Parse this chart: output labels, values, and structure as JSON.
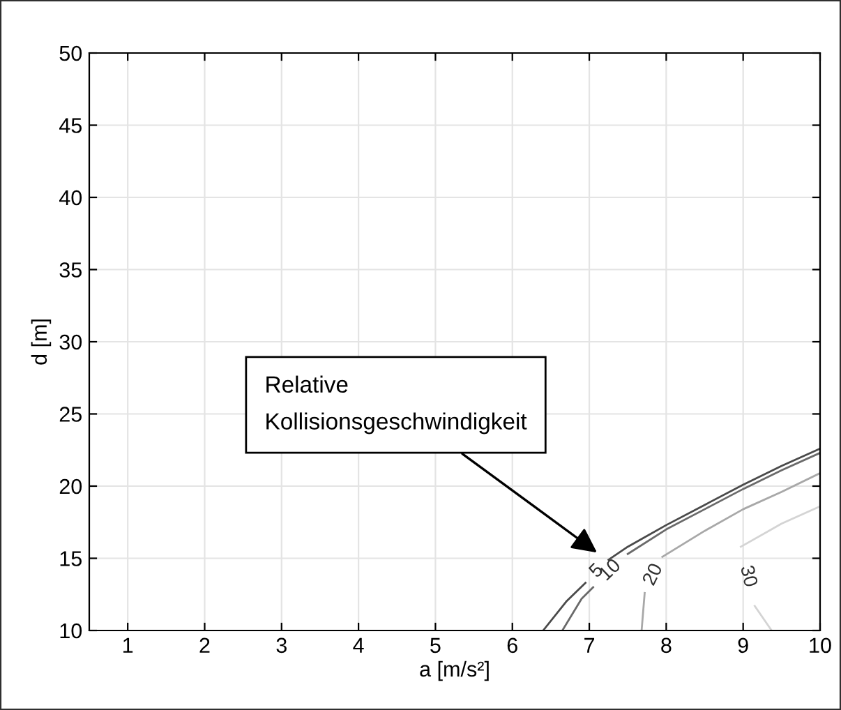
{
  "chart_data": {
    "type": "line",
    "xlabel": "a [m/s²]",
    "ylabel": "d [m]",
    "xlim": [
      0.5,
      10
    ],
    "xticks": [
      1,
      2,
      3,
      4,
      5,
      6,
      7,
      8,
      9,
      10
    ],
    "ylim": [
      10,
      50
    ],
    "yticks": [
      10,
      15,
      20,
      25,
      30,
      35,
      40,
      45,
      50
    ],
    "grid": true,
    "legend": false,
    "marker": "none",
    "line_style": "solid",
    "series": [
      {
        "name": "5",
        "color": "#4a4a4a",
        "x": [
          6.4,
          6.7,
          6.95,
          7.05,
          7.25,
          7.5,
          8.0,
          8.5,
          9.0,
          9.5,
          10.0
        ],
        "values": [
          10.0,
          12.0,
          13.3,
          null,
          14.9,
          15.8,
          17.3,
          18.7,
          20.1,
          21.4,
          22.6
        ]
      },
      {
        "name": "10",
        "color": "#6a6a6a",
        "x": [
          6.65,
          6.9,
          7.05,
          7.3,
          7.5,
          8.0,
          8.5,
          9.0,
          9.5,
          10.0
        ],
        "values": [
          10.0,
          12.2,
          13.0,
          null,
          15.3,
          17.0,
          18.4,
          19.8,
          21.1,
          22.3
        ]
      },
      {
        "name": "20",
        "color": "#a8a8a8",
        "x": [
          7.68,
          7.72,
          7.85,
          7.95,
          8.5,
          9.0,
          9.5,
          10.0
        ],
        "values": [
          10.0,
          12.6,
          null,
          15.1,
          16.9,
          18.4,
          19.6,
          20.9
        ]
      },
      {
        "name": "30",
        "color": "#d4d4d4",
        "x": [
          9.37,
          9.15,
          9.05,
          8.97,
          9.5,
          10.0
        ],
        "values": [
          10.0,
          11.7,
          null,
          15.8,
          17.4,
          18.6
        ]
      }
    ],
    "annotations": [
      "Relative\nKollisionsgeschwindigkeit"
    ]
  }
}
